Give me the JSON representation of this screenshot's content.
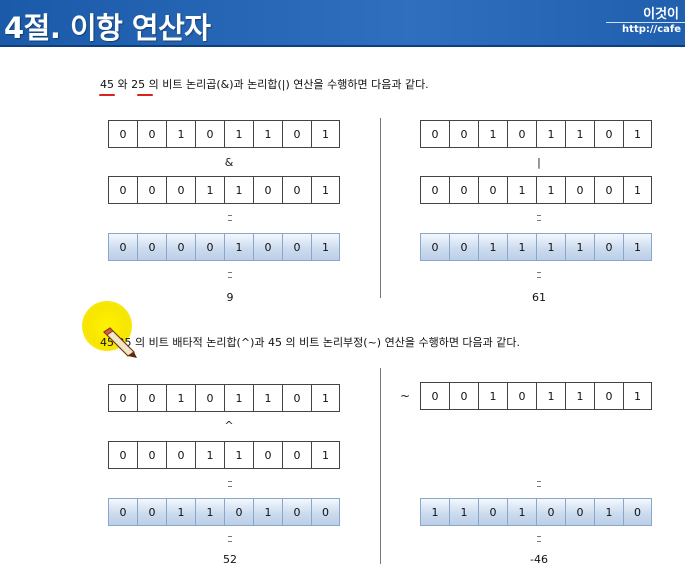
{
  "header": {
    "title": "4절. 이항 연산자",
    "logo_text": "이것이",
    "logo_url": "http://cafe"
  },
  "section1": {
    "desc_num1": "45",
    "desc_mid": " 와 ",
    "desc_num2": "25",
    "desc_rest": " 의 비트 논리곱(&)과 논리합(|) 연산을 수행하면 다음과 같다.",
    "and": {
      "a_bits": [
        "0",
        "0",
        "1",
        "0",
        "1",
        "1",
        "0",
        "1"
      ],
      "operator": "&",
      "b_bits": [
        "0",
        "0",
        "0",
        "1",
        "1",
        "0",
        "0",
        "1"
      ],
      "result_bits": [
        "0",
        "0",
        "0",
        "0",
        "1",
        "0",
        "0",
        "1"
      ],
      "decimal": "9"
    },
    "or": {
      "a_bits": [
        "0",
        "0",
        "1",
        "0",
        "1",
        "1",
        "0",
        "1"
      ],
      "operator": "|",
      "b_bits": [
        "0",
        "0",
        "0",
        "1",
        "1",
        "0",
        "0",
        "1"
      ],
      "result_bits": [
        "0",
        "0",
        "1",
        "1",
        "1",
        "1",
        "0",
        "1"
      ],
      "decimal": "61"
    }
  },
  "section2": {
    "desc_num1": "45",
    "desc_rest": " 25 의 비트 배타적 논리합(^)과 45 의 비트 논리부정(~) 연산을 수행하면 다음과 같다.",
    "xor": {
      "a_bits": [
        "0",
        "0",
        "1",
        "0",
        "1",
        "1",
        "0",
        "1"
      ],
      "operator": "^",
      "b_bits": [
        "0",
        "0",
        "0",
        "1",
        "1",
        "0",
        "0",
        "1"
      ],
      "result_bits": [
        "0",
        "0",
        "1",
        "1",
        "0",
        "1",
        "0",
        "0"
      ],
      "decimal": "52"
    },
    "not": {
      "operator": "~",
      "a_bits": [
        "0",
        "0",
        "1",
        "0",
        "1",
        "1",
        "0",
        "1"
      ],
      "result_bits": [
        "1",
        "1",
        "0",
        "1",
        "0",
        "0",
        "1",
        "0"
      ],
      "decimal": "-46"
    }
  },
  "colors": {
    "header_bg": "#2563b0",
    "underline": "#d8231f",
    "result_fill": "#ccdcef",
    "highlight": "#fff200"
  }
}
